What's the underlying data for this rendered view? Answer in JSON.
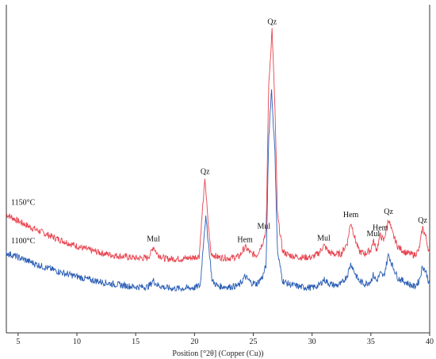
{
  "chart_data": {
    "type": "line",
    "title": "",
    "xlabel": "Position [°2θ] (Copper (Cu))",
    "ylabel": "",
    "xlim": [
      4,
      40
    ],
    "xticks": [
      5,
      10,
      15,
      20,
      25,
      30,
      35,
      40
    ],
    "grid": false,
    "colors": {
      "1150": "#e8434f",
      "1100": "#2a5db4",
      "axis": "#333333"
    },
    "series": [
      {
        "name": "1150°C",
        "color": "#e8434f",
        "points": [
          [
            4,
            160
          ],
          [
            5,
            151
          ],
          [
            6,
            143
          ],
          [
            7,
            136
          ],
          [
            8,
            129
          ],
          [
            9,
            123
          ],
          [
            10,
            117
          ],
          [
            11,
            112
          ],
          [
            12,
            108
          ],
          [
            13,
            105
          ],
          [
            14,
            103
          ],
          [
            15,
            101
          ],
          [
            16,
            101
          ],
          [
            16.3,
            108
          ],
          [
            16.5,
            117
          ],
          [
            16.8,
            107
          ],
          [
            17.5,
            100
          ],
          [
            18,
            100
          ],
          [
            19,
            100
          ],
          [
            19.5,
            101
          ],
          [
            20,
            102
          ],
          [
            20.4,
            104
          ],
          [
            20.7,
            170
          ],
          [
            20.9,
            208
          ],
          [
            21.1,
            160
          ],
          [
            21.4,
            107
          ],
          [
            22,
            102
          ],
          [
            23,
            101
          ],
          [
            23.8,
            103
          ],
          [
            24.3,
            116
          ],
          [
            24.8,
            107
          ],
          [
            25.3,
            105
          ],
          [
            25.8,
            122
          ],
          [
            26.1,
            138
          ],
          [
            26.3,
            330
          ],
          [
            26.6,
            410
          ],
          [
            26.85,
            300
          ],
          [
            27.05,
            160
          ],
          [
            27.5,
            110
          ],
          [
            28,
            105
          ],
          [
            29,
            102
          ],
          [
            30,
            102
          ],
          [
            30.6,
            108
          ],
          [
            31,
            118
          ],
          [
            31.5,
            108
          ],
          [
            32,
            106
          ],
          [
            32.5,
            107
          ],
          [
            33,
            122
          ],
          [
            33.3,
            150
          ],
          [
            33.6,
            130
          ],
          [
            34,
            110
          ],
          [
            34.5,
            107
          ],
          [
            35,
            112
          ],
          [
            35.2,
            124
          ],
          [
            35.5,
            112
          ],
          [
            35.8,
            132
          ],
          [
            36.1,
            124
          ],
          [
            36.5,
            154
          ],
          [
            36.8,
            136
          ],
          [
            37.3,
            116
          ],
          [
            38,
            108
          ],
          [
            38.7,
            105
          ],
          [
            39.1,
            112
          ],
          [
            39.4,
            142
          ],
          [
            39.7,
            128
          ],
          [
            40,
            105
          ]
        ]
      },
      {
        "name": "1100°C",
        "color": "#2a5db4",
        "points": [
          [
            4,
            108
          ],
          [
            5,
            102
          ],
          [
            6,
            96
          ],
          [
            7,
            90
          ],
          [
            8,
            85
          ],
          [
            9,
            80
          ],
          [
            10,
            76
          ],
          [
            11,
            72
          ],
          [
            12,
            69
          ],
          [
            13,
            66
          ],
          [
            14,
            64
          ],
          [
            15,
            62
          ],
          [
            16,
            62
          ],
          [
            16.3,
            66
          ],
          [
            16.5,
            71
          ],
          [
            16.8,
            65
          ],
          [
            17.5,
            61
          ],
          [
            18,
            60
          ],
          [
            19,
            60
          ],
          [
            20,
            61
          ],
          [
            20.5,
            64
          ],
          [
            20.8,
            130
          ],
          [
            20.95,
            156
          ],
          [
            21.2,
            120
          ],
          [
            21.5,
            70
          ],
          [
            22,
            63
          ],
          [
            23,
            62
          ],
          [
            23.8,
            64
          ],
          [
            24.3,
            76
          ],
          [
            24.8,
            68
          ],
          [
            25.3,
            66
          ],
          [
            25.8,
            76
          ],
          [
            26.1,
            92
          ],
          [
            26.3,
            260
          ],
          [
            26.55,
            330
          ],
          [
            26.85,
            240
          ],
          [
            27.05,
            110
          ],
          [
            27.5,
            70
          ],
          [
            28,
            66
          ],
          [
            29,
            62
          ],
          [
            30,
            61
          ],
          [
            30.6,
            64
          ],
          [
            31,
            72
          ],
          [
            31.5,
            66
          ],
          [
            32,
            64
          ],
          [
            32.5,
            66
          ],
          [
            33,
            78
          ],
          [
            33.3,
            94
          ],
          [
            33.6,
            82
          ],
          [
            34,
            70
          ],
          [
            34.5,
            66
          ],
          [
            35,
            70
          ],
          [
            35.2,
            78
          ],
          [
            35.5,
            70
          ],
          [
            35.8,
            80
          ],
          [
            36.1,
            76
          ],
          [
            36.5,
            106
          ],
          [
            36.8,
            92
          ],
          [
            37.3,
            74
          ],
          [
            38,
            68
          ],
          [
            38.7,
            62
          ],
          [
            39.1,
            70
          ],
          [
            39.4,
            90
          ],
          [
            39.7,
            82
          ],
          [
            40,
            64
          ]
        ]
      }
    ],
    "annotations": [
      {
        "text": "Mul",
        "x": 16.5,
        "y": 117
      },
      {
        "text": "Qz",
        "x": 20.9,
        "y": 208
      },
      {
        "text": "Hem",
        "x": 24.3,
        "y": 116
      },
      {
        "text": "Mul",
        "x": 25.9,
        "y": 134
      },
      {
        "text": "Qz",
        "x": 26.6,
        "y": 410
      },
      {
        "text": "Mul",
        "x": 31.0,
        "y": 118
      },
      {
        "text": "Hem",
        "x": 33.3,
        "y": 150
      },
      {
        "text": "Mul",
        "x": 35.2,
        "y": 124
      },
      {
        "text": "Hem",
        "x": 35.8,
        "y": 132
      },
      {
        "text": "Qz",
        "x": 36.5,
        "y": 154
      },
      {
        "text": "Qz",
        "x": 39.4,
        "y": 142
      }
    ],
    "series_labels": [
      {
        "text": "1150°C",
        "series": "1150°C"
      },
      {
        "text": "1100°C",
        "series": "1100°C"
      }
    ]
  }
}
